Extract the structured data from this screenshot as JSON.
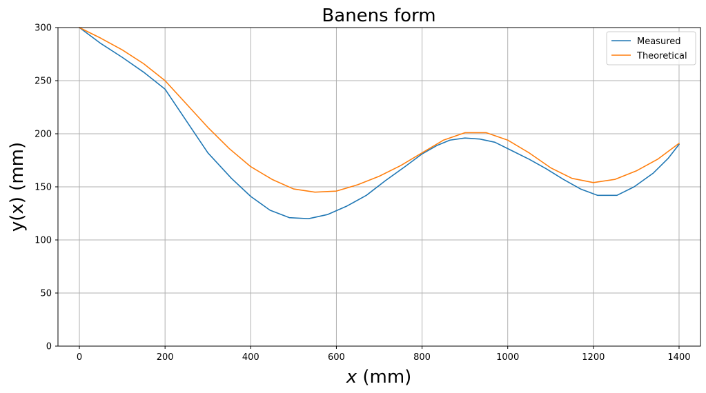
{
  "chart_data": {
    "type": "line",
    "title": "Banens form",
    "xlabel_var": "x",
    "xlabel_unit": " (mm)",
    "ylabel_text": "y(x) (mm)",
    "xlim": [
      -50,
      1450
    ],
    "ylim": [
      0,
      300
    ],
    "xticks": [
      0,
      200,
      400,
      600,
      800,
      1000,
      1200,
      1400
    ],
    "yticks": [
      0,
      50,
      100,
      150,
      200,
      250,
      300
    ],
    "grid": true,
    "legend_position": "top-right",
    "series": [
      {
        "name": "Measured",
        "color": "#1f77b4",
        "x": [
          0,
          50,
          100,
          150,
          200,
          250,
          300,
          355,
          400,
          445,
          490,
          535,
          580,
          625,
          670,
          715,
          760,
          800,
          835,
          865,
          900,
          935,
          970,
          1010,
          1050,
          1090,
          1130,
          1170,
          1210,
          1255,
          1295,
          1340,
          1375,
          1400
        ],
        "y": [
          300,
          285,
          272,
          258,
          242,
          212,
          182,
          158,
          141,
          128,
          121,
          120,
          124,
          132,
          142,
          156,
          169,
          181,
          189,
          194,
          196,
          195,
          192,
          184,
          176,
          167,
          157,
          148,
          142,
          142,
          150,
          163,
          177,
          190
        ]
      },
      {
        "name": "Theoretical",
        "color": "#ff7f0e",
        "x": [
          0,
          50,
          100,
          150,
          200,
          250,
          300,
          350,
          400,
          450,
          500,
          550,
          600,
          650,
          700,
          750,
          800,
          850,
          900,
          950,
          1000,
          1050,
          1100,
          1150,
          1200,
          1250,
          1300,
          1350,
          1400
        ],
        "y": [
          300,
          290,
          279,
          266,
          250,
          228,
          206,
          186,
          169,
          157,
          148,
          145,
          146,
          152,
          160,
          170,
          182,
          194,
          201,
          201,
          194,
          182,
          168,
          158,
          154,
          157,
          165,
          176,
          191
        ]
      }
    ]
  }
}
